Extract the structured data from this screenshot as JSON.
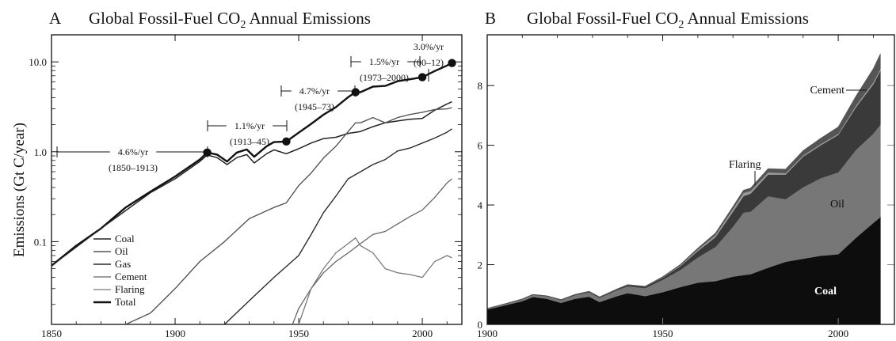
{
  "panel_a": {
    "letter": "A",
    "title_main": "Global Fossil-Fuel CO",
    "title_sub": "2",
    "title_rest": " Annual Emissions",
    "ylabel": "Emissions (Gt C/year)",
    "yticks": [
      "10.0",
      "1.0",
      "0.1"
    ],
    "xticks": [
      "1850",
      "1900",
      "1950",
      "2000"
    ],
    "legend": [
      "Coal",
      "Oil",
      "Gas",
      "Cement",
      "Flaring",
      "Total"
    ],
    "annotations": [
      {
        "rate": "4.6%/yr",
        "period": "(1850–1913)"
      },
      {
        "rate": "1.1%/yr",
        "period": "(1913–45)"
      },
      {
        "rate": "4.7%/yr",
        "period": "(1945–73)"
      },
      {
        "rate": "1.5%/yr",
        "period": "(1973–2000)"
      },
      {
        "rate": "3.0%/yr",
        "period": "(00–12)"
      }
    ]
  },
  "panel_b": {
    "letter": "B",
    "title_main": "Global Fossil-Fuel CO",
    "title_sub": "2",
    "title_rest": " Annual Emissions",
    "yticks": [
      "0",
      "2",
      "4",
      "6",
      "8"
    ],
    "xticks": [
      "1900",
      "1950",
      "2000"
    ],
    "labels": {
      "cement": "Cement",
      "flaring": "Flaring",
      "oil": "Oil",
      "coal": "Coal"
    }
  },
  "chart_data": [
    {
      "type": "line",
      "title": "A Global Fossil-Fuel CO2 Annual Emissions",
      "ylabel": "Emissions (Gt C/year)",
      "yscale": "log",
      "xlim": [
        1850,
        2016
      ],
      "ylim": [
        0.012,
        20
      ],
      "legend_position": "bottom-left",
      "series": [
        {
          "name": "Total",
          "x": [
            1850,
            1860,
            1870,
            1880,
            1890,
            1900,
            1910,
            1913,
            1917,
            1921,
            1925,
            1929,
            1932,
            1937,
            1940,
            1945,
            1950,
            1955,
            1960,
            1965,
            1970,
            1973,
            1975,
            1980,
            1985,
            1990,
            1995,
            2000,
            2005,
            2010,
            2012
          ],
          "y": [
            0.054,
            0.09,
            0.14,
            0.24,
            0.36,
            0.53,
            0.82,
            0.98,
            0.93,
            0.78,
            0.98,
            1.06,
            0.88,
            1.15,
            1.28,
            1.3,
            1.63,
            2.04,
            2.58,
            3.13,
            4.05,
            4.6,
            4.6,
            5.3,
            5.4,
            6.1,
            6.4,
            6.75,
            7.9,
            9.1,
            9.7
          ]
        },
        {
          "name": "Coal",
          "x": [
            1850,
            1870,
            1890,
            1900,
            1910,
            1913,
            1917,
            1921,
            1925,
            1929,
            1932,
            1937,
            1940,
            1945,
            1950,
            1955,
            1960,
            1965,
            1970,
            1975,
            1980,
            1985,
            1990,
            1995,
            2000,
            2005,
            2010,
            2012
          ],
          "y": [
            0.054,
            0.14,
            0.35,
            0.5,
            0.78,
            0.92,
            0.86,
            0.72,
            0.86,
            0.93,
            0.75,
            0.95,
            1.05,
            0.95,
            1.08,
            1.25,
            1.4,
            1.45,
            1.6,
            1.68,
            1.9,
            2.1,
            2.2,
            2.3,
            2.35,
            2.9,
            3.4,
            3.6
          ]
        },
        {
          "name": "Oil",
          "x": [
            1880,
            1890,
            1900,
            1910,
            1920,
            1930,
            1940,
            1945,
            1950,
            1955,
            1960,
            1965,
            1970,
            1973,
            1975,
            1980,
            1985,
            1990,
            1995,
            2000,
            2005,
            2010,
            2012
          ],
          "y": [
            0.012,
            0.016,
            0.03,
            0.06,
            0.1,
            0.18,
            0.24,
            0.27,
            0.42,
            0.58,
            0.85,
            1.15,
            1.68,
            2.1,
            2.1,
            2.4,
            2.1,
            2.4,
            2.6,
            2.75,
            2.95,
            3.0,
            3.1
          ]
        },
        {
          "name": "Gas",
          "x": [
            1910,
            1920,
            1930,
            1940,
            1950,
            1955,
            1960,
            1965,
            1970,
            1975,
            1980,
            1985,
            1990,
            1995,
            2000,
            2005,
            2010,
            2012
          ],
          "y": [
            0.007,
            0.012,
            0.022,
            0.04,
            0.07,
            0.12,
            0.21,
            0.32,
            0.5,
            0.6,
            0.72,
            0.82,
            1.02,
            1.1,
            1.25,
            1.42,
            1.65,
            1.8
          ]
        },
        {
          "name": "Cement",
          "x": [
            1925,
            1930,
            1935,
            1940,
            1945,
            1950,
            1955,
            1960,
            1965,
            1970,
            1975,
            1980,
            1985,
            1990,
            1995,
            2000,
            2005,
            2010,
            2012
          ],
          "y": [
            0.01,
            0.011,
            0.011,
            0.012,
            0.008,
            0.018,
            0.03,
            0.045,
            0.06,
            0.075,
            0.095,
            0.12,
            0.13,
            0.157,
            0.19,
            0.225,
            0.31,
            0.45,
            0.5
          ]
        },
        {
          "name": "Flaring",
          "x": [
            1950,
            1955,
            1960,
            1965,
            1970,
            1973,
            1975,
            1980,
            1985,
            1990,
            1995,
            2000,
            2005,
            2010,
            2012
          ],
          "y": [
            0.012,
            0.03,
            0.05,
            0.075,
            0.095,
            0.11,
            0.09,
            0.075,
            0.05,
            0.045,
            0.043,
            0.04,
            0.06,
            0.07,
            0.066
          ]
        }
      ],
      "markers": {
        "x": [
          1913,
          1945,
          1973,
          2000,
          2012
        ],
        "y": [
          0.98,
          1.3,
          4.6,
          6.75,
          9.7
        ]
      }
    },
    {
      "type": "area",
      "title": "B Global Fossil-Fuel CO2 Annual Emissions",
      "xlim": [
        1900,
        2016
      ],
      "ylim": [
        0,
        9.7
      ],
      "stacked": true,
      "x": [
        1900,
        1905,
        1910,
        1913,
        1917,
        1921,
        1925,
        1929,
        1932,
        1937,
        1940,
        1945,
        1950,
        1955,
        1960,
        1965,
        1970,
        1973,
        1975,
        1980,
        1985,
        1990,
        1995,
        2000,
        2005,
        2010,
        2012
      ],
      "series": [
        {
          "name": "Coal",
          "values": [
            0.5,
            0.64,
            0.78,
            0.92,
            0.86,
            0.72,
            0.86,
            0.93,
            0.75,
            0.95,
            1.05,
            0.95,
            1.08,
            1.25,
            1.4,
            1.45,
            1.6,
            1.65,
            1.68,
            1.9,
            2.1,
            2.2,
            2.3,
            2.35,
            2.9,
            3.4,
            3.6
          ]
        },
        {
          "name": "Oil",
          "values": [
            0.03,
            0.04,
            0.06,
            0.07,
            0.08,
            0.09,
            0.12,
            0.15,
            0.14,
            0.2,
            0.23,
            0.27,
            0.42,
            0.58,
            0.85,
            1.15,
            1.68,
            2.1,
            2.1,
            2.4,
            2.1,
            2.4,
            2.6,
            2.75,
            2.95,
            3.0,
            3.1
          ]
        },
        {
          "name": "Gas",
          "values": [
            0.003,
            0.005,
            0.007,
            0.009,
            0.01,
            0.012,
            0.016,
            0.02,
            0.02,
            0.028,
            0.04,
            0.05,
            0.07,
            0.12,
            0.21,
            0.32,
            0.5,
            0.55,
            0.6,
            0.72,
            0.82,
            1.02,
            1.1,
            1.25,
            1.42,
            1.65,
            1.8
          ]
        },
        {
          "name": "Flaring",
          "values": [
            0,
            0,
            0,
            0,
            0,
            0,
            0,
            0,
            0,
            0,
            0,
            0,
            0.012,
            0.03,
            0.05,
            0.075,
            0.095,
            0.11,
            0.09,
            0.075,
            0.05,
            0.045,
            0.043,
            0.04,
            0.06,
            0.07,
            0.066
          ]
        },
        {
          "name": "Cement",
          "values": [
            0.005,
            0.006,
            0.008,
            0.009,
            0.01,
            0.01,
            0.01,
            0.011,
            0.011,
            0.011,
            0.012,
            0.008,
            0.018,
            0.03,
            0.045,
            0.06,
            0.075,
            0.085,
            0.095,
            0.12,
            0.13,
            0.157,
            0.19,
            0.225,
            0.31,
            0.45,
            0.5
          ]
        }
      ]
    }
  ]
}
